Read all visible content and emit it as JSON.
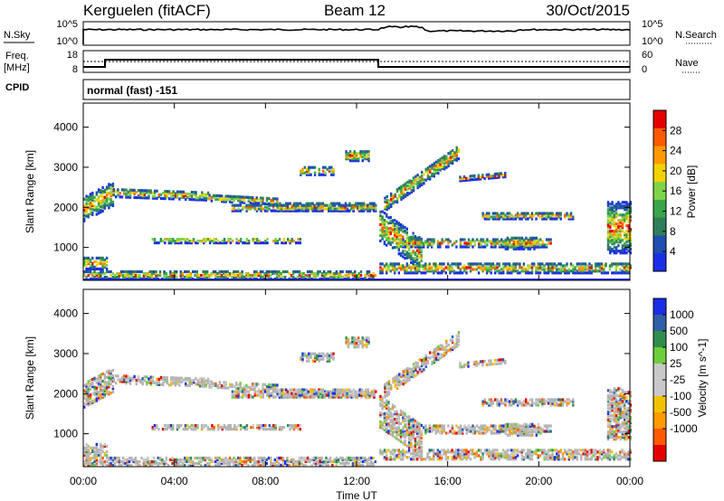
{
  "header": {
    "station": "Kerguelen (fitACF)",
    "beam": "Beam 12",
    "date": "30/Oct/2015"
  },
  "nsky_panel": {
    "left_label": "N.Sky",
    "right_label": "N.Search",
    "left_ticks": [
      "10^5",
      "10^0"
    ],
    "right_ticks": [
      "10^5",
      "10^0"
    ]
  },
  "freq_panel": {
    "left_label_1": "Freq.",
    "left_label_2": "[MHz]",
    "right_label": "Nave",
    "left_ticks": [
      "18",
      "8"
    ],
    "right_ticks": [
      "60",
      "0"
    ]
  },
  "cpid": {
    "label": "CPID",
    "mode_text": "normal (fast) -151"
  },
  "colors": {
    "power_scale": [
      "#1a2ee6",
      "#1f4fb0",
      "#2f7f5a",
      "#3aa64a",
      "#7fd44a",
      "#f2d300",
      "#ff9900",
      "#ff5a00",
      "#e60000"
    ],
    "velocity_scale": [
      "#e60000",
      "#ff5a00",
      "#ff9900",
      "#f2c200",
      "#c8c8c8",
      "#c8c8c8",
      "#6ccf3a",
      "#2f8f4a",
      "#2f5faa",
      "#1a2ee6"
    ],
    "ground_scatter": "#b4b4b4"
  },
  "chart_data": [
    {
      "type": "heatmap",
      "name": "power",
      "title": "",
      "xlabel": "",
      "ylabel": "Slant Range [km]",
      "x_ticks": [
        "00:00",
        "04:00",
        "08:00",
        "12:00",
        "16:00",
        "20:00",
        "00:00"
      ],
      "y_ticks": [
        1000,
        2000,
        3000,
        4000
      ],
      "xlim_hours": [
        0,
        24
      ],
      "ylim_km": [
        180,
        4600
      ],
      "colorbar": {
        "label": "Power [dB]",
        "ticks": [
          "28",
          "24",
          "20",
          "16",
          "12",
          "8",
          "4"
        ]
      }
    },
    {
      "type": "heatmap",
      "name": "velocity",
      "title": "",
      "xlabel": "Time UT",
      "ylabel": "Slant Range [km]",
      "x_ticks": [
        "00:00",
        "04:00",
        "08:00",
        "12:00",
        "16:00",
        "20:00",
        "00:00"
      ],
      "y_ticks": [
        1000,
        2000,
        3000,
        4000
      ],
      "xlim_hours": [
        0,
        24
      ],
      "ylim_km": [
        180,
        4600
      ],
      "colorbar": {
        "label": "Velocity [m s^-1]",
        "ticks": [
          "1000",
          "500",
          "100",
          "25",
          "-25",
          "-100",
          "-500",
          "-1000"
        ]
      }
    }
  ]
}
